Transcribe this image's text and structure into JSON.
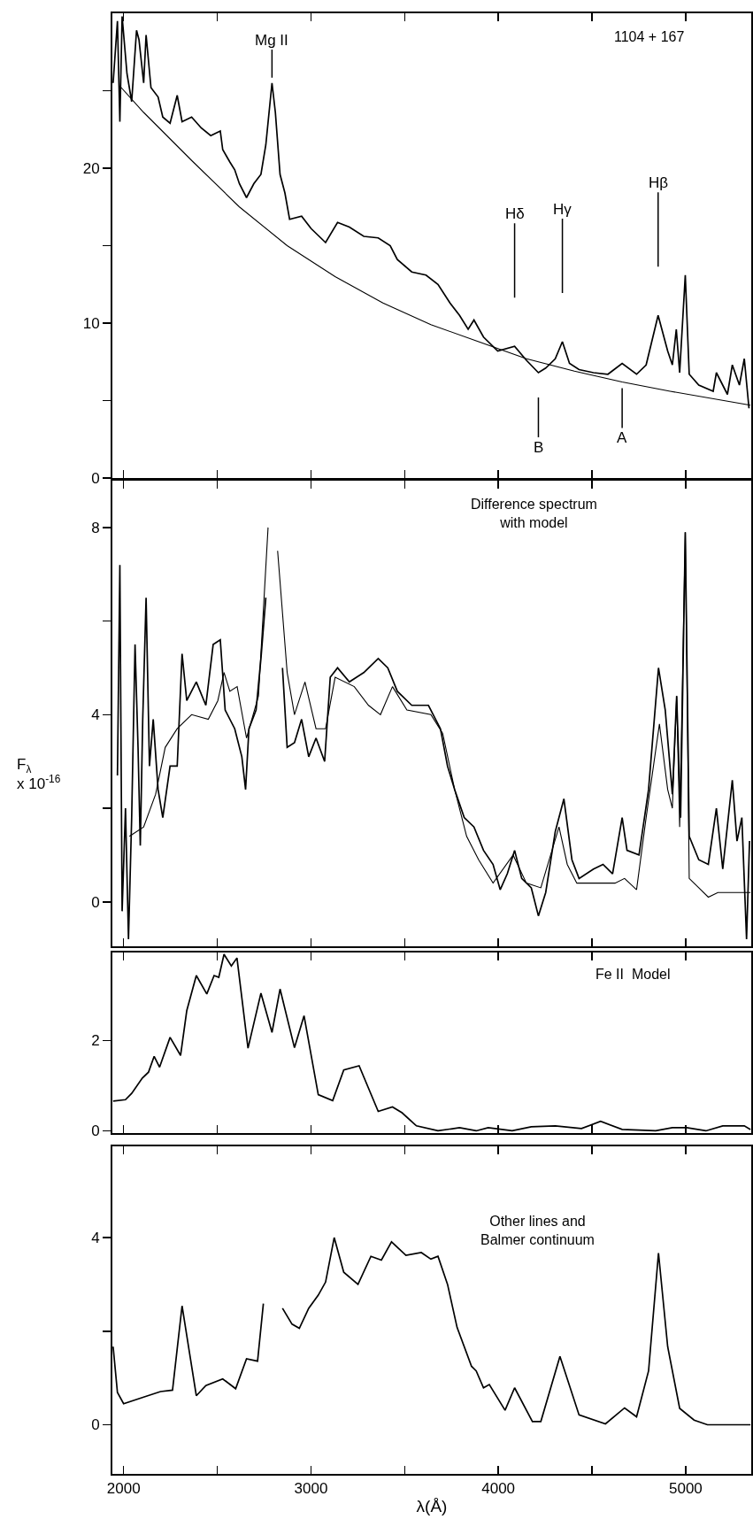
{
  "chart_data": [
    {
      "type": "line",
      "xlim": [
        1940,
        5350
      ],
      "ylim": [
        0,
        30
      ],
      "xticks": [
        2000,
        {
          "value": 2500,
          "label": null
        },
        3000,
        {
          "value": 3500,
          "label": null
        },
        4000,
        {
          "value": 4500,
          "label": null
        },
        5000
      ],
      "yticks": [
        0,
        10,
        20,
        {
          "value": 5,
          "label": null
        },
        {
          "value": 15,
          "label": null
        },
        {
          "value": 25,
          "label": null
        }
      ],
      "tick_labels": "y",
      "series": [
        {
          "color": "#000000",
          "x": [
            1944,
            1967,
            1980,
            1992,
            2018,
            2043,
            2069,
            2082,
            2107,
            2120,
            2146,
            2184,
            2209,
            2248,
            2286,
            2312,
            2363,
            2414,
            2465,
            2516,
            2529,
            2567,
            2593,
            2618,
            2656,
            2695,
            2733,
            2759,
            2792,
            2810,
            2835,
            2861,
            2886,
            2950,
            3001,
            3078,
            3142,
            3205,
            3282,
            3359,
            3423,
            3461,
            3538,
            3614,
            3678,
            3742,
            3793,
            3839,
            3870,
            3921,
            3997,
            4087,
            4150,
            4214,
            4253,
            4304,
            4342,
            4380,
            4431,
            4508,
            4585,
            4661,
            4738,
            4789,
            4853,
            4904,
            4929,
            4950,
            4968,
            4998,
            5019,
            5070,
            5147,
            5164,
            5223,
            5249,
            5287,
            5313,
            5338
          ],
          "values": [
            25.5,
            29.5,
            23,
            29.8,
            26.1,
            24.3,
            28.9,
            28.3,
            25.5,
            28.6,
            25.2,
            24.6,
            23.3,
            22.9,
            24.7,
            23,
            23.3,
            22.6,
            22.1,
            22.4,
            21.2,
            20.4,
            19.9,
            19,
            18.1,
            19,
            19.6,
            21.5,
            25.5,
            23.6,
            19.6,
            18.4,
            16.7,
            16.9,
            16.1,
            15.2,
            16.5,
            16.2,
            15.6,
            15.5,
            15,
            14.1,
            13.3,
            13.1,
            12.5,
            11.3,
            10.5,
            9.6,
            10.2,
            9.1,
            8.2,
            8.5,
            7.6,
            6.8,
            7.1,
            7.7,
            8.8,
            7.4,
            7,
            6.8,
            6.7,
            7.4,
            6.7,
            7.3,
            10.5,
            8.2,
            7.3,
            9.6,
            6.8,
            13.1,
            6.7,
            6,
            5.6,
            6.8,
            5.4,
            7.3,
            6,
            7.7,
            4.5
          ]
        },
        {
          "color": "#000000",
          "x": [
            1980,
            2107,
            2363,
            2618,
            2873,
            3129,
            3384,
            3640,
            3895,
            4150,
            4406,
            4661,
            4917,
            5346
          ],
          "values": [
            25.3,
            23.6,
            20.5,
            17.5,
            15,
            13,
            11.3,
            9.9,
            8.8,
            7.7,
            6.9,
            6.2,
            5.6,
            4.7
          ]
        }
      ],
      "annotations": [
        {
          "text": "Mg II",
          "x": 2792,
          "y": 25.5
        },
        {
          "text": "Hδ",
          "x": 4087,
          "y": 8.5
        },
        {
          "text": "Hγ",
          "x": 4342,
          "y": 8.8
        },
        {
          "text": "Hβ",
          "x": 4853,
          "y": 10.5
        },
        {
          "text": "B",
          "x": 4214,
          "y": 6.8
        },
        {
          "text": "A",
          "x": 4661,
          "y": 7.4
        },
        "1104 + 167"
      ]
    },
    {
      "type": "line",
      "xlim": [
        1940,
        5350
      ],
      "ylim": [
        -0.95,
        9
      ],
      "xticks": [
        2000,
        {
          "value": 2500,
          "label": null
        },
        3000,
        {
          "value": 3500,
          "label": null
        },
        4000,
        {
          "value": 4500,
          "label": null
        },
        5000
      ],
      "yticks": [
        0,
        4,
        8,
        {
          "value": 2,
          "label": null
        },
        {
          "value": 6,
          "label": null
        }
      ],
      "tick_labels": "y",
      "ylabel": "F$_{λ}$\nx 10$^{-16}$",
      "series": [
        {
          "color": "#000000",
          "x": [
            1967,
            1980,
            1992,
            2010,
            2026,
            2043,
            2061,
            2077,
            2089,
            2102,
            2120,
            2138,
            2158,
            2184,
            2209,
            2248,
            2286,
            2312,
            2337,
            2388,
            2439,
            2478,
            2516,
            2542,
            2593,
            2631,
            2651,
            2669,
            2707,
            2733,
            2759,
            2784,
            2817,
            2848,
            2873,
            2912,
            2950,
            2988,
            3027,
            3073,
            3103,
            3142,
            3205,
            3282,
            3359,
            3410,
            3461,
            3538,
            3627,
            3691,
            3729,
            3767,
            3818,
            3870,
            3921,
            3972,
            4010,
            4048,
            4087,
            4125,
            4176,
            4214,
            4253,
            4304,
            4350,
            4393,
            4431,
            4508,
            4559,
            4610,
            4661,
            4687,
            4751,
            4802,
            4855,
            4891,
            4929,
            4952,
            4973,
            4998,
            5019,
            5070,
            5121,
            5164,
            5198,
            5249,
            5274,
            5300,
            5325,
            5341
          ],
          "values": [
            2.7,
            7.2,
            -0.2,
            2,
            -0.8,
            1.8,
            5.5,
            3.3,
            1.2,
            3.9,
            6.5,
            2.9,
            3.9,
            2.4,
            1.8,
            2.9,
            2.9,
            5.3,
            4.3,
            4.7,
            4.2,
            5.5,
            5.6,
            4.1,
            3.7,
            3.1,
            2.4,
            3.7,
            4.1,
            5.2,
            6.5,
            null,
            null,
            5,
            3.3,
            3.4,
            3.9,
            3.1,
            3.5,
            3,
            4.8,
            5,
            4.7,
            4.9,
            5.2,
            5,
            4.5,
            4.2,
            4.2,
            3.7,
            2.9,
            2.4,
            1.8,
            1.6,
            1.1,
            0.8,
            0.26,
            0.6,
            1.1,
            0.5,
            0.3,
            -0.3,
            0.2,
            1.5,
            2.2,
            0.9,
            0.5,
            0.7,
            0.8,
            0.6,
            1.8,
            1.1,
            1,
            2.4,
            5,
            4.1,
            2.3,
            4.4,
            1.8,
            7.9,
            1.4,
            0.9,
            0.8,
            2,
            0.7,
            2.6,
            1.3,
            1.8,
            -0.8,
            1.3
          ]
        },
        {
          "color": "#000000",
          "x": [
            2031,
            2107,
            2171,
            2222,
            2286,
            2363,
            2452,
            2503,
            2536,
            2567,
            2606,
            2656,
            2720,
            2771,
            2797,
            2822,
            2873,
            2912,
            2968,
            3027,
            3078,
            3129,
            3231,
            3307,
            3371,
            3435,
            3512,
            3640,
            3703,
            3767,
            3831,
            3895,
            3972,
            4079,
            4150,
            4227,
            4324,
            4368,
            4419,
            4546,
            4623,
            4674,
            4738,
            4789,
            4860,
            4904,
            4929,
            4952,
            4968,
            4998,
            5019,
            5070,
            5121,
            5172,
            5346
          ],
          "values": [
            1.4,
            1.6,
            2.3,
            3.3,
            3.7,
            4,
            3.9,
            4.3,
            4.9,
            4.5,
            4.6,
            3.5,
            4.4,
            8,
            null,
            7.5,
            4.9,
            4,
            4.7,
            3.7,
            3.7,
            4.8,
            4.6,
            4.2,
            4,
            4.6,
            4.1,
            4,
            3.6,
            2.4,
            1.4,
            0.9,
            0.4,
            1,
            0.4,
            0.3,
            1.6,
            0.8,
            0.4,
            0.4,
            0.4,
            0.5,
            0.26,
            1.8,
            3.8,
            2.4,
            2,
            4.4,
            1.6,
            7.9,
            0.5,
            0.3,
            0.1,
            0.2,
            0.2
          ]
        }
      ],
      "annotations": [
        "Difference spectrum\nwith model"
      ]
    },
    {
      "type": "line",
      "xlim": [
        1940,
        5350
      ],
      "ylim": [
        -0.05,
        3.95
      ],
      "xticks": [
        2000,
        {
          "value": 2500,
          "label": null
        },
        3000,
        {
          "value": 3500,
          "label": null
        },
        4000,
        {
          "value": 4500,
          "label": null
        },
        5000
      ],
      "yticks": [
        0,
        2
      ],
      "tick_labels": "y",
      "series": [
        {
          "color": "#000000",
          "x": [
            1944,
            2010,
            2043,
            2100,
            2133,
            2163,
            2192,
            2248,
            2304,
            2337,
            2388,
            2444,
            2483,
            2508,
            2536,
            2575,
            2605,
            2664,
            2733,
            2792,
            2835,
            2912,
            2963,
            3039,
            3116,
            3175,
            3257,
            3359,
            3435,
            3486,
            3563,
            3678,
            3793,
            3882,
            3946,
            4074,
            4176,
            4304,
            4444,
            4546,
            4661,
            4840,
            4929,
            5006,
            5108,
            5198,
            5313,
            5346
          ],
          "values": [
            0.66,
            0.69,
            0.83,
            1.17,
            1.3,
            1.65,
            1.41,
            2.07,
            1.67,
            2.66,
            3.44,
            3.03,
            3.44,
            3.4,
            3.91,
            3.65,
            3.83,
            1.83,
            3.05,
            2.18,
            3.14,
            1.84,
            2.55,
            0.8,
            0.67,
            1.35,
            1.44,
            0.43,
            0.53,
            0.4,
            0.11,
            0,
            0.07,
            0,
            0.07,
            0,
            0.09,
            0.11,
            0.05,
            0.21,
            0.03,
            0,
            0.07,
            0.07,
            0,
            0.11,
            0.11,
            0.03
          ]
        }
      ],
      "annotations": [
        "Fe II  Model"
      ]
    },
    {
      "type": "line",
      "xlim": [
        1940,
        5350
      ],
      "ylim": [
        -1.05,
        5.95
      ],
      "xticks": [
        2000,
        {
          "value": 2500,
          "label": null
        },
        3000,
        {
          "value": 3500,
          "label": null
        },
        4000,
        {
          "value": 4500,
          "label": null
        },
        5000
      ],
      "yticks": [
        0,
        4,
        {
          "value": 2,
          "label": null
        }
      ],
      "xlabel": "λ(Å)",
      "series": [
        {
          "color": "#000000",
          "x": [
            1944,
            1967,
            2000,
            2107,
            2197,
            2261,
            2312,
            2388,
            2439,
            2529,
            2598,
            2656,
            2715,
            2746,
            2771,
            2810,
            2848,
            2899,
            2938,
            2988,
            3039,
            3078,
            3124,
            3175,
            3251,
            3320,
            3376,
            3430,
            3507,
            3589,
            3640,
            3678,
            3729,
            3780,
            3857,
            3882,
            3921,
            3952,
            4036,
            4087,
            4182,
            4227,
            4329,
            4431,
            4572,
            4674,
            4738,
            4802,
            4855,
            4904,
            4968,
            5045,
            5116,
            5346
          ],
          "values": [
            1.67,
            0.69,
            0.45,
            0.59,
            0.71,
            0.74,
            2.54,
            0.62,
            0.84,
            0.98,
            0.77,
            1.41,
            1.36,
            2.59,
            null,
            null,
            2.49,
            2.15,
            2.06,
            2.49,
            2.77,
            3.05,
            4,
            3.26,
            3,
            3.6,
            3.52,
            3.91,
            3.62,
            3.68,
            3.54,
            3.6,
            3,
            2.08,
            1.25,
            1.15,
            0.79,
            0.86,
            0.31,
            0.79,
            0.07,
            0.07,
            1.46,
            0.21,
            0.02,
            0.36,
            0.17,
            1.15,
            3.67,
            1.67,
            0.35,
            0.1,
            0,
            0
          ]
        }
      ],
      "annotations": [
        "Other lines and\nBalmer continuum"
      ]
    }
  ]
}
